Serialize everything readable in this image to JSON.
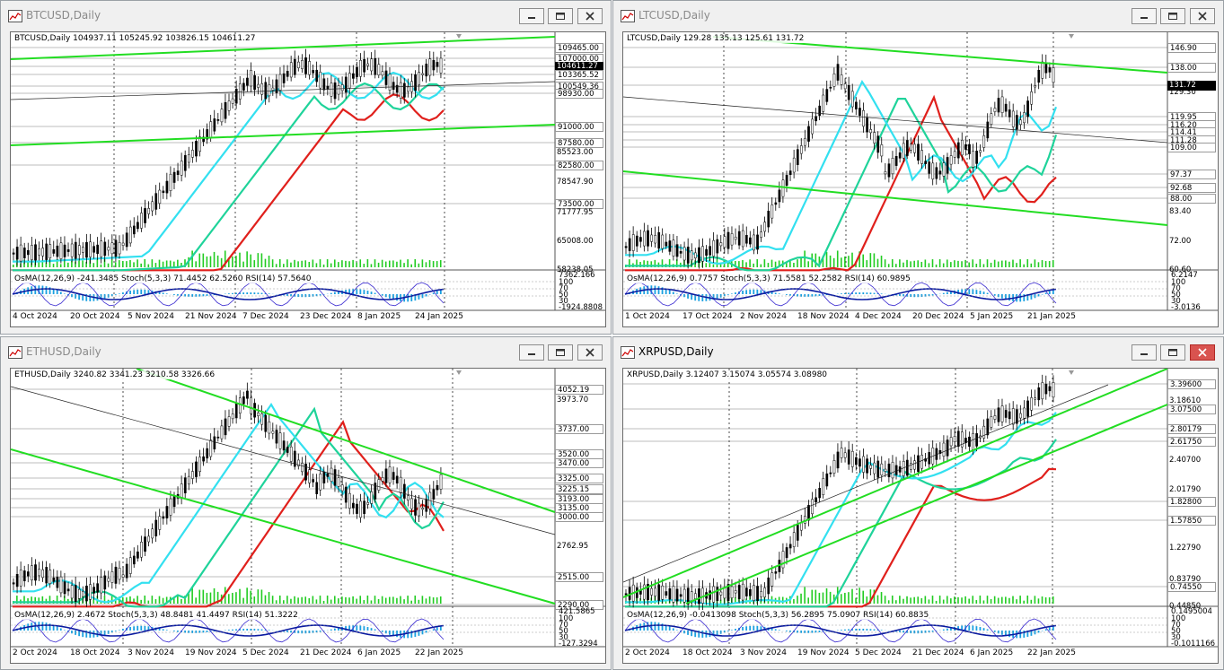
{
  "windows": [
    {
      "id": "btc",
      "title": "BTCUSD,Daily",
      "active": false,
      "header": "BTCUSD,Daily  104937.11 105245.92 103826.15 104611.27",
      "price_labels": [
        {
          "text": "109465.00",
          "style": "boxed"
        },
        {
          "text": "107000.00",
          "style": "boxed"
        },
        {
          "text": "104611.27",
          "style": "current"
        },
        {
          "text": "103365.52",
          "style": "boxed"
        },
        {
          "text": "100549.36",
          "style": "boxed"
        },
        {
          "text": "98930.00",
          "style": "boxed"
        },
        {
          "text": "91000.00",
          "style": "boxed"
        },
        {
          "text": "87580.00",
          "style": "boxed"
        },
        {
          "text": "85523.00",
          "style": "plain"
        },
        {
          "text": "82580.00",
          "style": "boxed"
        },
        {
          "text": "78547.90",
          "style": "plain"
        },
        {
          "text": "73500.00",
          "style": "boxed"
        },
        {
          "text": "71777.95",
          "style": "plain"
        },
        {
          "text": "65008.00",
          "style": "plain"
        },
        {
          "text": "58238.05",
          "style": "plain"
        }
      ],
      "indicator_header": "OsMA(12,26,9) -241.3485  Stoch(5,3,3) 71.4452 62.5260  RSI(14) 57.5640",
      "indicator_labels": [
        "7362.166",
        "100",
        "70",
        "50",
        "30",
        "-1924.8808"
      ],
      "dates": [
        "4 Oct 2024",
        "20 Oct 2024",
        "5 Nov 2024",
        "21 Nov 2024",
        "7 Dec 2024",
        "23 Dec 2024",
        "8 Jan 2025",
        "24 Jan 2025"
      ]
    },
    {
      "id": "ltc",
      "title": "LTCUSD,Daily",
      "active": false,
      "header": "LTCUSD,Daily  129.28 135.13 125.61 131.72",
      "price_labels": [
        {
          "text": "146.90",
          "style": "boxed"
        },
        {
          "text": "138.00",
          "style": "boxed"
        },
        {
          "text": "131.72",
          "style": "current"
        },
        {
          "text": "129.30",
          "style": "plain"
        },
        {
          "text": "119.95",
          "style": "boxed"
        },
        {
          "text": "116.20",
          "style": "boxed"
        },
        {
          "text": "114.41",
          "style": "boxed"
        },
        {
          "text": "111.28",
          "style": "boxed"
        },
        {
          "text": "109.00",
          "style": "boxed"
        },
        {
          "text": "97.37",
          "style": "boxed"
        },
        {
          "text": "92.68",
          "style": "boxed"
        },
        {
          "text": "88.00",
          "style": "boxed"
        },
        {
          "text": "83.40",
          "style": "plain"
        },
        {
          "text": "72.00",
          "style": "plain"
        },
        {
          "text": "60.60",
          "style": "plain"
        }
      ],
      "indicator_header": "OsMA(12,26,9) 0.7757  Stoch(5,3,3) 71.5581 52.2582  RSI(14) 60.9895",
      "indicator_labels": [
        "6.2147",
        "100",
        "70",
        "50",
        "30",
        "-3.0136"
      ],
      "dates": [
        "1 Oct 2024",
        "17 Oct 2024",
        "2 Nov 2024",
        "18 Nov 2024",
        "4 Dec 2024",
        "20 Dec 2024",
        "5 Jan 2025",
        "21 Jan 2025"
      ]
    },
    {
      "id": "eth",
      "title": "ETHUSD,Daily",
      "active": false,
      "header": "ETHUSD,Daily  3240.82 3341.23 3210.58 3326.66",
      "price_labels": [
        {
          "text": "4052.19",
          "style": "boxed"
        },
        {
          "text": "3973.70",
          "style": "plain"
        },
        {
          "text": "3737.00",
          "style": "boxed"
        },
        {
          "text": "3520.00",
          "style": "boxed"
        },
        {
          "text": "3470.00",
          "style": "boxed"
        },
        {
          "text": "3325.00",
          "style": "boxed"
        },
        {
          "text": "3225.15",
          "style": "boxed"
        },
        {
          "text": "3193.00",
          "style": "boxed"
        },
        {
          "text": "3135.00",
          "style": "boxed"
        },
        {
          "text": "3000.00",
          "style": "boxed"
        },
        {
          "text": "2762.95",
          "style": "plain"
        },
        {
          "text": "2515.00",
          "style": "boxed"
        },
        {
          "text": "2290.00",
          "style": "boxed"
        }
      ],
      "indicator_header": "OsMA(12,26,9) 2.4672  Stoch(5,3,3) 48.8481 41.4497  RSI(14) 51.3222",
      "indicator_labels": [
        "421.5865",
        "100",
        "70",
        "50",
        "30",
        "-127.3294"
      ],
      "dates": [
        "2 Oct 2024",
        "18 Oct 2024",
        "3 Nov 2024",
        "19 Nov 2024",
        "5 Dec 2024",
        "21 Dec 2024",
        "6 Jan 2025",
        "22 Jan 2025"
      ]
    },
    {
      "id": "xrp",
      "title": "XRPUSD,Daily",
      "active": true,
      "header": "XRPUSD,Daily  3.12407 3.15074 3.05574 3.08980",
      "price_labels": [
        {
          "text": "3.39600",
          "style": "boxed"
        },
        {
          "text": "3.18610",
          "style": "plain"
        },
        {
          "text": "3.07500",
          "style": "boxed"
        },
        {
          "text": "2.80179",
          "style": "boxed"
        },
        {
          "text": "2.61750",
          "style": "boxed"
        },
        {
          "text": "2.40700",
          "style": "plain"
        },
        {
          "text": "2.01790",
          "style": "plain"
        },
        {
          "text": "1.82800",
          "style": "boxed"
        },
        {
          "text": "1.57850",
          "style": "boxed"
        },
        {
          "text": "1.22790",
          "style": "plain"
        },
        {
          "text": "0.83790",
          "style": "plain"
        },
        {
          "text": "0.74550",
          "style": "boxed"
        },
        {
          "text": "0.44850",
          "style": "plain"
        }
      ],
      "indicator_header": "OsMA(12,26,9) -0.0413098  Stoch(5,3,3) 56.2895 75.0907  RSI(14) 60.8835",
      "indicator_labels": [
        "0.1495004",
        "100",
        "70",
        "50",
        "30",
        "-0.1011166"
      ],
      "dates": [
        "2 Oct 2024",
        "18 Oct 2024",
        "3 Nov 2024",
        "19 Nov 2024",
        "5 Dec 2024",
        "21 Dec 2024",
        "6 Jan 2025",
        "22 Jan 2025"
      ]
    }
  ],
  "colors": {
    "trendline": "#22dd22",
    "ma_fast": "#33e0f0",
    "ma_mid": "#1fd39a",
    "ma_slow": "#e0201c",
    "candle_up": "#000000",
    "volume": "#22cc22",
    "osma": "#1aa0e0",
    "stoch": "#3a2ad0",
    "rsi": "#0a1aa0",
    "close_button": "#d9534f"
  },
  "icons": [
    "chart-window-icon",
    "minimize-icon",
    "restore-icon",
    "close-icon"
  ]
}
